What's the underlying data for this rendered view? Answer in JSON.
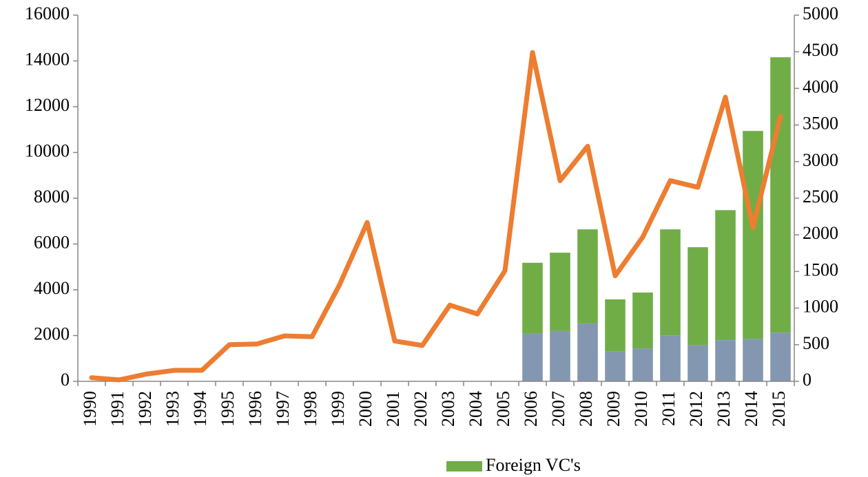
{
  "chart_data": {
    "type": "bar",
    "stacked": true,
    "categories": [
      "1990",
      "1991",
      "1992",
      "1993",
      "1994",
      "1995",
      "1996",
      "1997",
      "1998",
      "1999",
      "2000",
      "2001",
      "2002",
      "2003",
      "2004",
      "2005",
      "2006",
      "2007",
      "2008",
      "2009",
      "2010",
      "2011",
      "2012",
      "2013",
      "2014",
      "2015"
    ],
    "series": [
      {
        "color": "#8497b0",
        "values": [
          null,
          null,
          null,
          null,
          null,
          null,
          null,
          null,
          null,
          null,
          null,
          null,
          null,
          null,
          null,
          null,
          2080,
          2200,
          2530,
          1300,
          1440,
          2010,
          1590,
          1800,
          1860,
          2130
        ]
      },
      {
        "name": "Foreign VC's",
        "color": "#70ad47",
        "values": [
          null,
          null,
          null,
          null,
          null,
          null,
          null,
          null,
          null,
          null,
          null,
          null,
          null,
          null,
          null,
          null,
          3100,
          3420,
          4110,
          2280,
          2440,
          4630,
          4270,
          5680,
          9080,
          12030
        ]
      },
      {
        "type": "line",
        "axis": "y2",
        "color": "#ed7d31",
        "values": [
          50,
          20,
          100,
          150,
          150,
          500,
          510,
          620,
          610,
          1320,
          2170,
          550,
          490,
          1040,
          920,
          1510,
          4490,
          2740,
          3210,
          1440,
          1970,
          2740,
          2650,
          3880,
          2100,
          3620
        ]
      }
    ],
    "ylim": [
      0,
      16000
    ],
    "yticks": [
      0,
      2000,
      4000,
      6000,
      8000,
      10000,
      12000,
      14000,
      16000
    ],
    "y2lim": [
      0,
      5000
    ],
    "y2ticks": [
      0,
      500,
      1000,
      1500,
      2000,
      2500,
      3000,
      3500,
      4000,
      4500,
      5000
    ],
    "grid": false,
    "legend": "bottom"
  }
}
